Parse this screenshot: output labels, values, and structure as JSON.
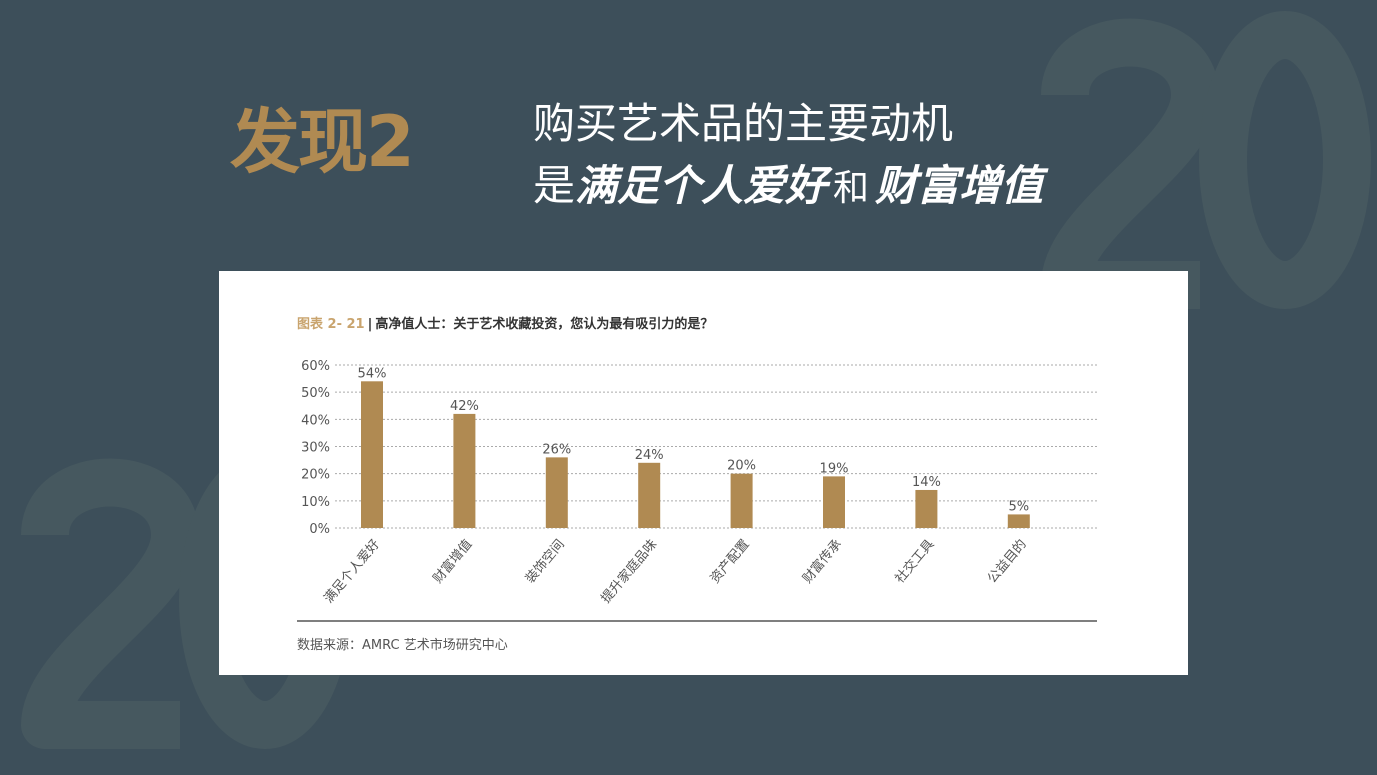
{
  "watermark": "20",
  "finding_label": "发现2",
  "headline": {
    "line1": "购买艺术品的主要动机",
    "line2_prefix": "是",
    "line2_em1": "满足个人爱好",
    "line2_mid": "和",
    "line2_em2": "财富增值"
  },
  "colors": {
    "background": "#3d4f5a",
    "accent": "#b08a52",
    "bar": "#b08a52"
  },
  "chart_data": {
    "type": "bar",
    "figure_label": "图表 2- 21",
    "title": "高净值人士：关于艺术收藏投资，您认为最有吸引力的是？",
    "categories": [
      "满足个人爱好",
      "财富增值",
      "装饰空间",
      "提升家庭品味",
      "资产配置",
      "财富传承",
      "社交工具",
      "公益目的"
    ],
    "values": [
      54,
      42,
      26,
      24,
      20,
      19,
      14,
      5
    ],
    "data_labels": [
      "54%",
      "42%",
      "26%",
      "24%",
      "20%",
      "19%",
      "14%",
      "5%"
    ],
    "yticks": [
      "0%",
      "10%",
      "20%",
      "30%",
      "40%",
      "50%",
      "60%"
    ],
    "ylim": [
      0,
      60
    ],
    "grid": true,
    "source": "数据来源：AMRC 艺术市场研究中心"
  }
}
